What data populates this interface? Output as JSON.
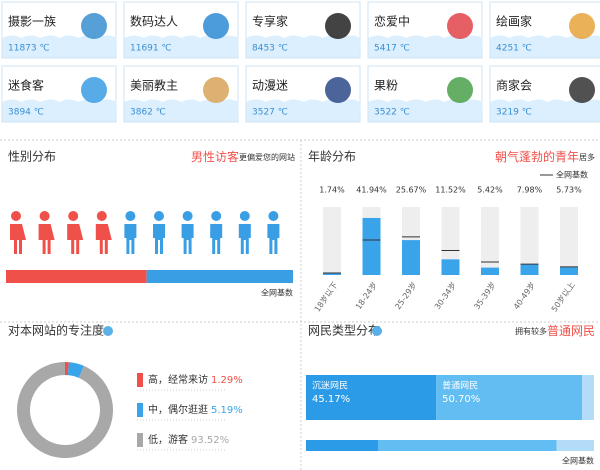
{
  "tags": [
    {
      "label": "摄影一族",
      "count": "11873 ℃"
    },
    {
      "label": "数码达人",
      "count": "11691 ℃"
    },
    {
      "label": "专享家",
      "count": "8453 ℃"
    },
    {
      "label": "恋爱中",
      "count": "5417 ℃"
    },
    {
      "label": "绘画家",
      "count": "4251 ℃"
    },
    {
      "label": "迷食客",
      "count": "3894 ℃"
    },
    {
      "label": "美丽教主",
      "count": "3862 ℃"
    },
    {
      "label": "动漫迷",
      "count": "3527 ℃"
    },
    {
      "label": "果粉",
      "count": "3522 ℃"
    },
    {
      "label": "商家会",
      "count": "3219 ℃"
    }
  ],
  "chart_data": [
    {
      "type": "hbar",
      "title": "性别分布",
      "highlight": "男性访客",
      "subtitle": "更偏爱您的网站",
      "icon_counts": [
        4,
        6
      ],
      "series": [
        {
          "color": "#f0504a",
          "values": [
            49
          ]
        },
        {
          "color": "#3a9ee4",
          "values": [
            51
          ]
        }
      ],
      "bar_label": "全网基数"
    },
    {
      "type": "bar",
      "title": "年龄分布",
      "highlight": "朝气蓬勃的青年",
      "subtitle": "居多",
      "categories": [
        "18岁以下",
        "18-24岁",
        "25-29岁",
        "30-34岁",
        "35-39岁",
        "40-49岁",
        "50岁以上"
      ],
      "series": [
        {
          "color": "#3aa4ea",
          "values": [
            1.74,
            41.94,
            25.67,
            11.52,
            5.42,
            7.98,
            5.73
          ],
          "value_labels": [
            "1.74%",
            "41.94%",
            "25.67%",
            "11.52%",
            "5.42%",
            "7.98%",
            "5.73%"
          ]
        },
        {
          "name": "全网基数",
          "color": "#333333",
          "values": [
            1.5,
            25.7,
            28,
            18,
            9.6,
            8,
            6
          ]
        }
      ],
      "ylim": [
        0,
        50
      ]
    },
    {
      "type": "pie",
      "title": "对本网站的专注度",
      "categories": [
        "高，经常来访",
        "中，偶尔逛逛",
        "低，游客"
      ],
      "values": [
        1.29,
        5.19,
        93.52
      ],
      "value_labels": [
        "1.29%",
        "5.19%",
        "93.52%"
      ],
      "colors": [
        "#f0504a",
        "#3aa4ea",
        "#a8a8a8"
      ]
    },
    {
      "type": "stack",
      "title": "网民类型分布",
      "subtitle": "拥有较多",
      "highlight": "普通网民",
      "categories": [
        null,
        "全网基数"
      ],
      "series": [
        {
          "name": "沉迷网民",
          "color": "#2b9be8",
          "values": [
            45.17,
            25
          ],
          "value_labels": [
            "45.17%",
            null
          ]
        },
        {
          "name": "普通网民",
          "color": "#62bdf3",
          "values": [
            50.7,
            62
          ],
          "value_labels": [
            "50.70%",
            null
          ]
        },
        {
          "color": "#b2dcf8",
          "values": [
            4.13,
            13
          ]
        }
      ]
    }
  ]
}
